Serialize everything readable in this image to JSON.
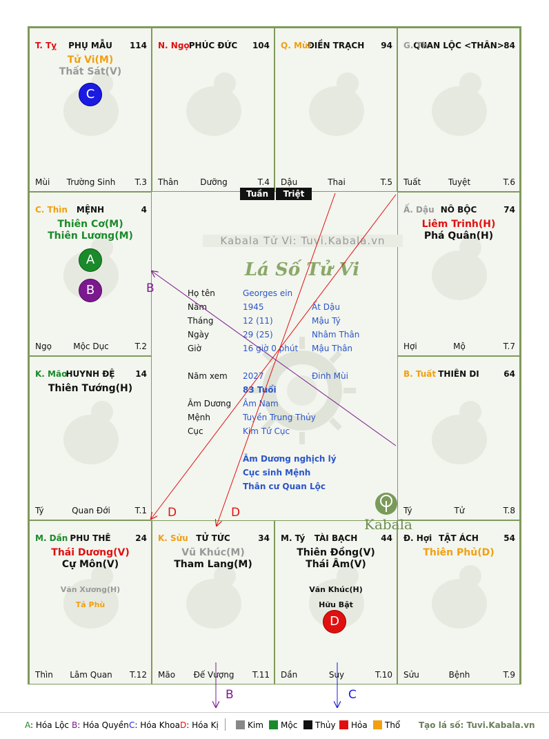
{
  "colors": {
    "loc": "#1a8a2a",
    "quyen": "#7a1a8e",
    "khoa": "#1a1ae0",
    "ki": "#e01010",
    "kim": "#888888",
    "moc": "#1a8a2a",
    "thuy": "#111111",
    "hoa": "#e01010",
    "tho": "#f0a010"
  },
  "center": {
    "watermark": "Kabala Tử Vi: Tuvi.Kabala.vn",
    "logo_text": "Lá Số Tử Vi",
    "brand": "Kabala",
    "rows": [
      {
        "label": "Họ tên",
        "v1": "Georges ein",
        "v2": ""
      },
      {
        "label": "Năm",
        "v1": "1945",
        "v2": "Ất Dậu"
      },
      {
        "label": "Tháng",
        "v1": "12  (11)",
        "v2": "Mậu Tý"
      },
      {
        "label": "Ngày",
        "v1": "29  (25)",
        "v2": "Nhâm Thân"
      },
      {
        "label": "Giờ",
        "v1": "16 giờ 0 phút",
        "v2": "Mậu Thân"
      }
    ],
    "nam_xem_label": "Năm xem",
    "nam_xem": "2027",
    "nam_xem_can": "Đinh Mùi",
    "tuoi": "83 Tuổi",
    "am_duong_label": "Âm Dương",
    "am_duong": "Âm Nam",
    "menh_label": "Mệnh",
    "menh": "Tuyền Trung Thủy",
    "cuc_label": "Cục",
    "cuc": "Kim Tứ Cục",
    "notes": [
      "Âm Dương nghịch lý",
      "Cục sinh Mệnh",
      "Thân cư Quan Lộc"
    ]
  },
  "tags": {
    "tuan": "Tuần",
    "triet": "Triệt"
  },
  "cells": [
    {
      "id": "ty",
      "branch": "T. Tỵ",
      "bcolor": "#e01010",
      "palace": "PHỤ MẪU",
      "num": "114",
      "stars": [
        {
          "t": "Tử Vi(M)",
          "c": "#f0a010"
        },
        {
          "t": "Thất Sát(V)",
          "c": "#999999"
        }
      ],
      "minor": [],
      "b1": "Mùi",
      "b2": "Trường Sinh",
      "b3": "T.3"
    },
    {
      "id": "ngo",
      "branch": "N. Ngọ",
      "bcolor": "#e01010",
      "palace": "PHÚC ĐỨC",
      "num": "104",
      "stars": [],
      "minor": [],
      "b1": "Thân",
      "b2": "Dưỡng",
      "b3": "T.4"
    },
    {
      "id": "mui",
      "branch": "Q. Mùi",
      "bcolor": "#f0a010",
      "palace": "ĐIỀN TRẠCH",
      "num": "94",
      "stars": [],
      "minor": [],
      "b1": "Dậu",
      "b2": "Thai",
      "b3": "T.5"
    },
    {
      "id": "than",
      "branch": "G. Th",
      "bcolor": "#999999",
      "palace": "QUAN LỘC <THÂN>",
      "num": "84",
      "stars": [],
      "minor": [],
      "b1": "Tuất",
      "b2": "Tuyệt",
      "b3": "T.6"
    },
    {
      "id": "thin",
      "branch": "C. Thìn",
      "bcolor": "#f0a010",
      "palace": "MỆNH",
      "num": "4",
      "stars": [
        {
          "t": "Thiên Cơ(M)",
          "c": "#1a8a2a"
        },
        {
          "t": "Thiên Lương(M)",
          "c": "#1a8a2a"
        }
      ],
      "minor": [],
      "b1": "Ngọ",
      "b2": "Mộc Dục",
      "b3": "T.2"
    },
    {
      "id": "dau",
      "branch": "Ấ. Dậu",
      "bcolor": "#999999",
      "palace": "NÔ BỘC",
      "num": "74",
      "stars": [
        {
          "t": "Liêm Trinh(H)",
          "c": "#e01010"
        },
        {
          "t": "Phá Quân(H)",
          "c": "#111111"
        }
      ],
      "minor": [],
      "b1": "Hợi",
      "b2": "Mộ",
      "b3": "T.7"
    },
    {
      "id": "mao",
      "branch": "K. Mão",
      "bcolor": "#1a8a2a",
      "palace": "HUYNH ĐỆ",
      "num": "14",
      "stars": [
        {
          "t": "Thiên Tướng(H)",
          "c": "#111111"
        }
      ],
      "minor": [],
      "b1": "Tý",
      "b2": "Quan Đới",
      "b3": "T.1"
    },
    {
      "id": "tuat",
      "branch": "B. Tuất",
      "bcolor": "#f0a010",
      "palace": "THIÊN DI",
      "num": "64",
      "stars": [],
      "minor": [],
      "b1": "Tý",
      "b2": "Tử",
      "b3": "T.8"
    },
    {
      "id": "dan",
      "branch": "M. Dần",
      "bcolor": "#1a8a2a",
      "palace": "PHU THÊ",
      "num": "24",
      "stars": [
        {
          "t": "Thái Dương(V)",
          "c": "#e01010"
        },
        {
          "t": "Cự Môn(V)",
          "c": "#111111"
        }
      ],
      "minor": [
        {
          "t": "Văn Xương(H)",
          "c": "#999999"
        },
        {
          "t": "Tả Phù",
          "c": "#f0a010"
        }
      ],
      "b1": "Thìn",
      "b2": "Lâm Quan",
      "b3": "T.12"
    },
    {
      "id": "suu",
      "branch": "K. Sửu",
      "bcolor": "#f0a010",
      "palace": "TỬ TỨC",
      "num": "34",
      "stars": [
        {
          "t": "Vũ Khúc(M)",
          "c": "#999999"
        },
        {
          "t": "Tham Lang(M)",
          "c": "#111111"
        }
      ],
      "minor": [],
      "b1": "Mão",
      "b2": "Đế Vượng",
      "b3": "T.11"
    },
    {
      "id": "ty2",
      "branch": "M. Tý",
      "bcolor": "#111111",
      "palace": "TÀI BẠCH",
      "num": "44",
      "stars": [
        {
          "t": "Thiên Đồng(V)",
          "c": "#111111"
        },
        {
          "t": "Thái Âm(V)",
          "c": "#111111"
        }
      ],
      "minor": [
        {
          "t": "Văn Khúc(H)",
          "c": "#111111"
        },
        {
          "t": "Hữu Bật",
          "c": "#111111"
        }
      ],
      "b1": "Dần",
      "b2": "Suy",
      "b3": "T.10"
    },
    {
      "id": "hoi",
      "branch": "Đ. Hợi",
      "bcolor": "#111111",
      "palace": "TẬT ÁCH",
      "num": "54",
      "stars": [
        {
          "t": "Thiên Phủ(D)",
          "c": "#f0a010"
        }
      ],
      "minor": [],
      "b1": "Sửu",
      "b2": "Bệnh",
      "b3": "T.9"
    }
  ],
  "circles": {
    "c": "C",
    "a": "A",
    "b": "B",
    "d": "D"
  },
  "arrow_labels": {
    "b_left": "B",
    "d1": "D",
    "d2": "D",
    "b_bottom": "B",
    "c_bottom": "C"
  },
  "legend": {
    "a": "A",
    "a_text": ": Hóa Lộc",
    "b": "B",
    "b_text": ": Hóa Quyền",
    "c": "C",
    "c_text": ": Hóa Khoa",
    "d": "D",
    "d_text": ": Hóa Kị",
    "kim": "Kim",
    "moc": "Mộc",
    "thuy": "Thủy",
    "hoa": "Hỏa",
    "tho": "Thổ",
    "site": "Tạo lá số: Tuvi.Kabala.vn"
  }
}
